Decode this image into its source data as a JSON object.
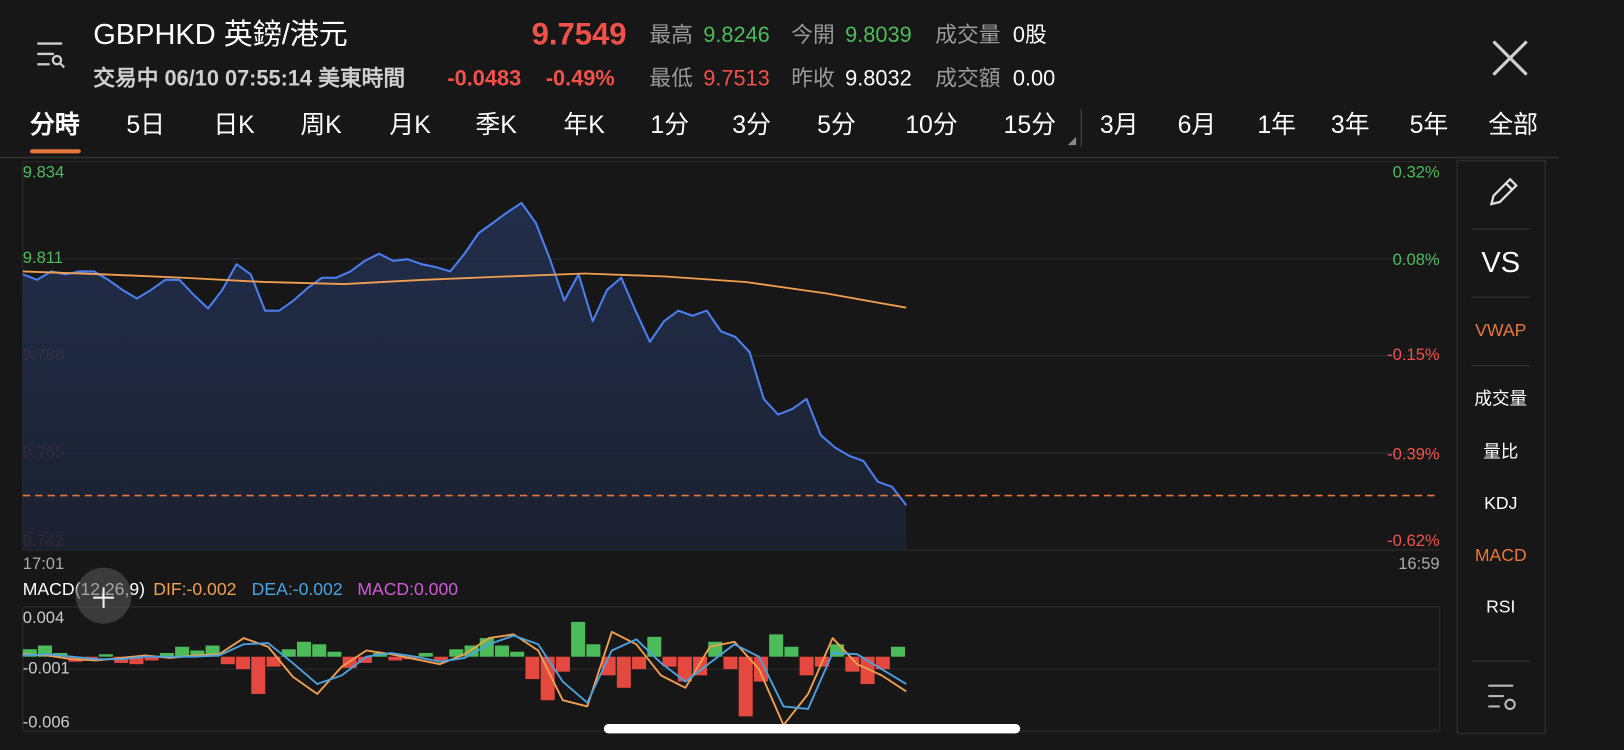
{
  "header": {
    "symbol": "GBPHKD 英鎊/港元",
    "price": "9.7549",
    "status": "交易中 06/10 07:55:14 美東時間",
    "change": "-0.0483",
    "change_pct": "-0.49%",
    "price_color": "#f0524a",
    "stats": [
      {
        "label": "最高",
        "value": "9.8246",
        "color": "#4cbb5a"
      },
      {
        "label": "今開",
        "value": "9.8039",
        "color": "#4cbb5a"
      },
      {
        "label": "成交量",
        "value": "0股",
        "color": "#ffffff"
      },
      {
        "label": "最低",
        "value": "9.7513",
        "color": "#f0524a"
      },
      {
        "label": "昨收",
        "value": "9.8032",
        "color": "#ffffff"
      },
      {
        "label": "成交額",
        "value": "0.00",
        "color": "#ffffff"
      }
    ]
  },
  "tabs": [
    "分時",
    "5日",
    "日K",
    "周K",
    "月K",
    "季K",
    "年K",
    "1分",
    "3分",
    "5分",
    "10分",
    "15分",
    "3月",
    "6月",
    "1年",
    "3年",
    "5年",
    "全部"
  ],
  "side_panel": [
    {
      "label": "VS",
      "active": false
    },
    {
      "label": "VWAP",
      "active": true
    },
    {
      "label": "成交量",
      "active": false
    },
    {
      "label": "量比",
      "active": false
    },
    {
      "label": "KDJ",
      "active": false
    },
    {
      "label": "MACD",
      "active": true
    },
    {
      "label": "RSI",
      "active": false
    }
  ],
  "chart_data": [
    {
      "type": "line",
      "x_labels": [
        "17:01",
        "16:59"
      ],
      "ylim": [
        9.742,
        9.834
      ],
      "yticks": [
        9.834,
        9.811,
        9.788,
        9.765,
        9.742
      ],
      "y2lim": [
        -0.62,
        0.32
      ],
      "y2ticks": [
        {
          "value": 0.32,
          "label": "0.32%"
        },
        {
          "value": 0.08,
          "label": "0.08%"
        },
        {
          "value": -0.15,
          "label": "-0.15%"
        },
        {
          "value": -0.39,
          "label": "-0.39%"
        },
        {
          "value": -0.62,
          "label": "-0.62%"
        }
      ],
      "up_color": "#4cbb5a",
      "down_color": "#f0524a",
      "grid": true,
      "series": [
        {
          "color": "#4a7ff0",
          "values": [
            9.8073,
            9.806,
            9.808,
            9.8073,
            9.808,
            9.808,
            9.806,
            9.8036,
            9.8016,
            9.8036,
            9.806,
            9.806,
            9.8024,
            9.7992,
            9.8036,
            9.8097,
            9.8073,
            9.7987,
            9.7987,
            9.8011,
            9.8041,
            9.8065,
            9.8065,
            9.808,
            9.8105,
            9.8122,
            9.8105,
            9.8109,
            9.8097,
            9.809,
            9.808,
            9.8122,
            9.8171,
            9.8195,
            9.822,
            9.8242,
            9.8195,
            9.8109,
            9.8011,
            9.8073,
            9.7962,
            9.8036,
            9.8065,
            9.7987,
            9.7913,
            9.7962,
            9.7987,
            9.7975,
            9.7987,
            9.7938,
            9.7925,
            9.7889,
            9.7778,
            9.7741,
            9.7754,
            9.7778,
            9.7692,
            9.7663,
            9.7643,
            9.7631,
            9.7582,
            9.757,
            9.7526
          ]
        },
        {
          "color": "#f0a050",
          "values": [
            9.808,
            9.8073,
            9.8065,
            9.8055,
            9.805,
            9.806,
            9.8068,
            9.8075,
            9.8068,
            9.8055,
            9.8028,
            9.7994
          ]
        }
      ],
      "price_line_color": "#e8773a"
    },
    {
      "type": "macd",
      "title": "MACD(12,26,9)",
      "ylim": [
        -0.006,
        0.004
      ],
      "yticks": [
        0.004,
        -0.001,
        -0.006
      ],
      "legend": [
        {
          "text": "DIF:-0.002",
          "color": "#f0a050"
        },
        {
          "text": "DEA:-0.002",
          "color": "#4aa3e0"
        },
        {
          "text": "MACD:0.000",
          "color": "#d05ad8"
        }
      ],
      "up_color": "#4cbb5a",
      "down_color": "#e5483e",
      "histogram": [
        0.0006,
        0.0009,
        0.0003,
        -0.0004,
        -0.0002,
        0.0002,
        -0.0005,
        -0.0006,
        -0.0003,
        0.0003,
        0.0008,
        0.0005,
        0.0009,
        -0.0006,
        -0.001,
        -0.003,
        -0.0008,
        0.0006,
        0.0012,
        0.001,
        0.0004,
        -0.0009,
        -0.0005,
        0.0003,
        -0.0003,
        -0.0002,
        0.0003,
        -0.0003,
        0.0006,
        0.0009,
        0.0015,
        0.0009,
        0.0004,
        -0.0018,
        -0.0035,
        -0.0012,
        0.0028,
        0.001,
        -0.0015,
        -0.0025,
        -0.001,
        0.0016,
        -0.0008,
        -0.002,
        -0.0015,
        0.0012,
        -0.001,
        -0.0048,
        -0.002,
        0.0018,
        0.0008,
        -0.0015,
        -0.0008,
        0.001,
        -0.0012,
        -0.0022,
        -0.001,
        0.0008
      ],
      "series": [
        {
          "color": "#f0a050",
          "values": [
            0.0002,
            0.0001,
            -0.0002,
            -0.0003,
            -0.0001,
            0.0001,
            -0.0001,
            0.0001,
            0.0002,
            0.0015,
            0.0008,
            -0.0016,
            -0.003,
            -0.0008,
            0.0005,
            0.0002,
            -0.0002,
            -0.0006,
            0.0002,
            0.0015,
            0.0018,
            0.0005,
            -0.0035,
            -0.004,
            0.002,
            0.001,
            -0.0015,
            -0.0025,
            0.0008,
            0.0012,
            -0.001,
            -0.0055,
            -0.003,
            0.0015,
            -0.0006,
            -0.0015,
            -0.0028
          ]
        },
        {
          "color": "#4aa3e0",
          "values": [
            0.0001,
            0.0002,
            0.0,
            -0.0002,
            -0.0002,
            0.0,
            0.0,
            0.0,
            0.0001,
            0.001,
            0.0011,
            -0.0005,
            -0.0022,
            -0.0015,
            0.0,
            0.0003,
            0.0,
            -0.0004,
            -0.0001,
            0.001,
            0.0017,
            0.001,
            -0.002,
            -0.0037,
            0.0005,
            0.0014,
            -0.0005,
            -0.002,
            -0.0005,
            0.001,
            0.0,
            -0.004,
            -0.0042,
            0.0003,
            0.0002,
            -0.001,
            -0.0022
          ]
        }
      ]
    }
  ]
}
